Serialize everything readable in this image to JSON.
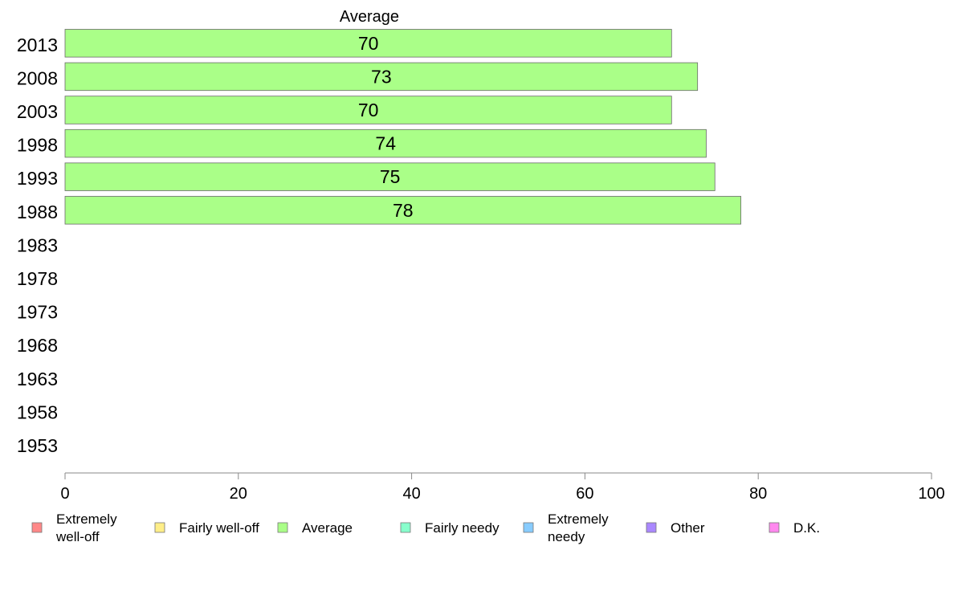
{
  "chart_data": {
    "type": "bar",
    "orientation": "horizontal",
    "title": "Average",
    "categories": [
      "2013",
      "2008",
      "2003",
      "1998",
      "1993",
      "1988",
      "1983",
      "1978",
      "1973",
      "1968",
      "1963",
      "1958",
      "1953"
    ],
    "series": [
      {
        "name": "Average",
        "color": "#aaff88",
        "values": [
          70,
          73,
          70,
          74,
          75,
          78,
          null,
          null,
          null,
          null,
          null,
          null,
          null
        ]
      }
    ],
    "data_labels": [
      "70",
      "73",
      "70",
      "74",
      "75",
      "78",
      "",
      "",
      "",
      "",
      "",
      "",
      ""
    ],
    "xlim": [
      0,
      100
    ],
    "xticks": [
      0,
      20,
      40,
      60,
      80,
      100
    ],
    "xlabel": "",
    "ylabel": "",
    "grid": false,
    "legend_position": "bottom",
    "legend": [
      {
        "label": "Extremely\nwell-off",
        "color": "#ff8888"
      },
      {
        "label": "Fairly well-off",
        "color": "#ffee88"
      },
      {
        "label": "Average",
        "color": "#aaff88"
      },
      {
        "label": "Fairly needy",
        "color": "#88ffcc"
      },
      {
        "label": "Extremely\nneedy",
        "color": "#88ccff"
      },
      {
        "label": "Other",
        "color": "#aa88ff"
      },
      {
        "label": "D.K.",
        "color": "#ff88ee"
      }
    ]
  }
}
